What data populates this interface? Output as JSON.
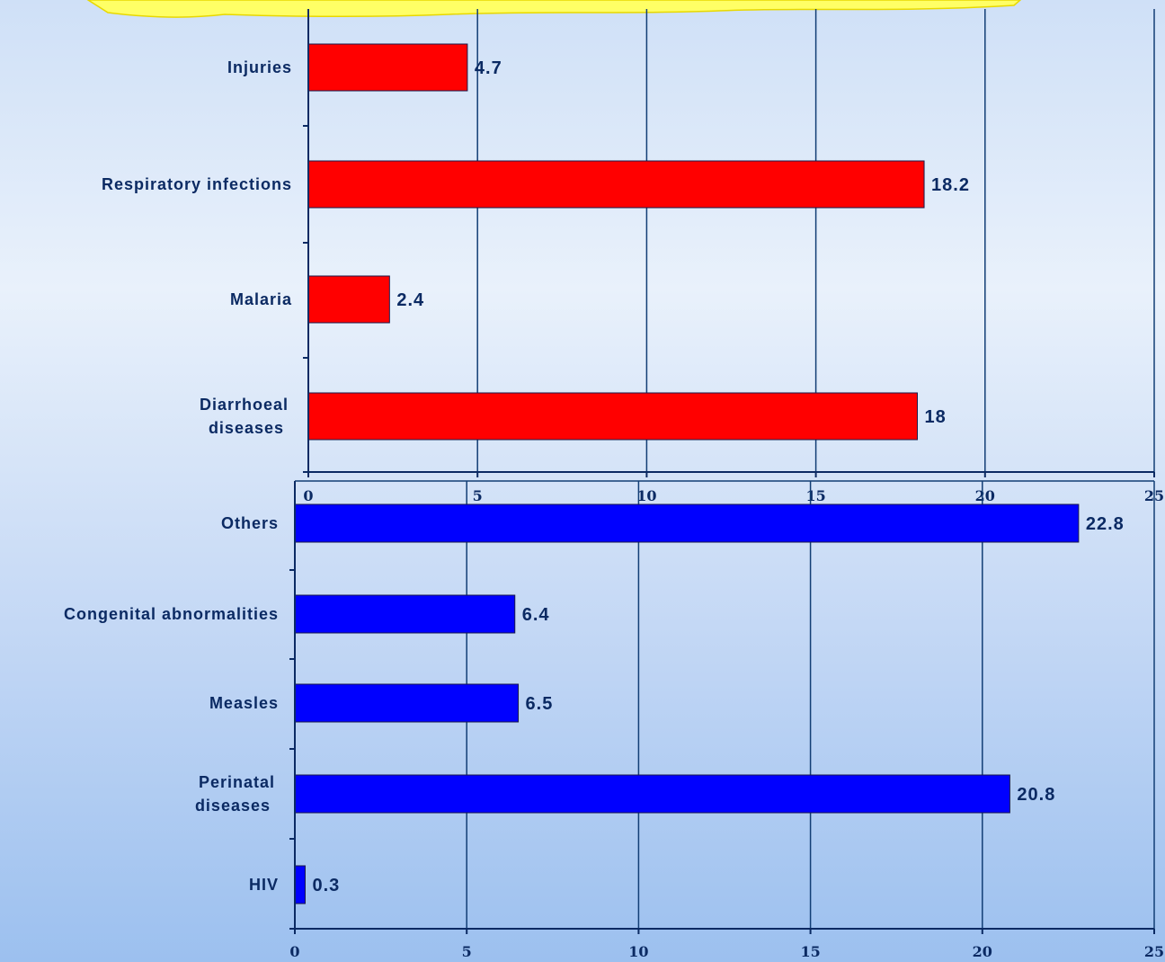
{
  "colors": {
    "top_bars": "#ff0000",
    "bottom_bars": "#0000ff",
    "text": "#0b2a63",
    "grid": "#123e75",
    "banner": "#ffff66"
  },
  "chart_data": [
    {
      "type": "bar",
      "orientation": "horizontal",
      "categories": [
        "Diarrhoeal diseases",
        "Malaria",
        "Respiratory infections",
        "Injuries"
      ],
      "values": [
        18,
        2.4,
        18.2,
        4.7
      ],
      "data_labels": [
        "18",
        "2.4",
        "18.2",
        "4.7"
      ],
      "xlim": [
        0,
        25
      ],
      "xticks": [
        "0",
        "5",
        "10",
        "15",
        "20",
        "25"
      ],
      "grid": true,
      "color": "#ff0000"
    },
    {
      "type": "bar",
      "orientation": "horizontal",
      "categories": [
        "HIV",
        "Perinatal diseases",
        "Measles",
        "Congenital abnormalities",
        "Others"
      ],
      "values": [
        0.3,
        20.8,
        6.5,
        6.4,
        22.8
      ],
      "data_labels": [
        "0.3",
        "20.8",
        "6.5",
        "6.4",
        "22.8"
      ],
      "xlim": [
        0,
        25
      ],
      "xticks": [
        "0",
        "5",
        "10",
        "15",
        "20",
        "25"
      ],
      "grid": true,
      "color": "#0000ff"
    }
  ]
}
